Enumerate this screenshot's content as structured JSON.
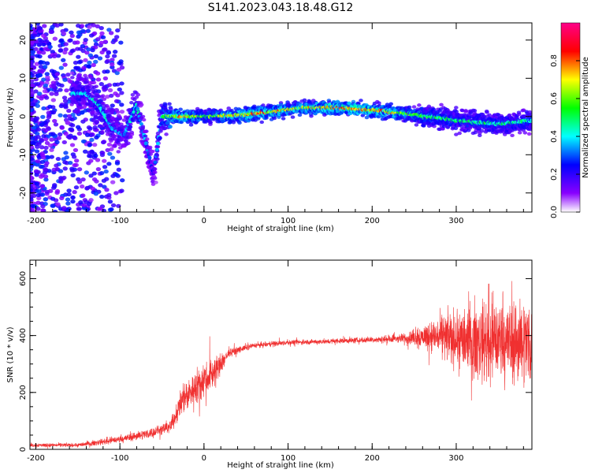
{
  "figure": {
    "title": "S141.2023.043.18.48.G12"
  },
  "chart_data": [
    {
      "type": "heatmap",
      "xlabel": "Height of straight line (km)",
      "ylabel": "Frequency (Hz)",
      "xlim": [
        -207,
        390
      ],
      "ylim": [
        -25,
        24.5
      ],
      "x_ticks": [
        -200,
        -100,
        0,
        100,
        200,
        300
      ],
      "y_ticks": [
        -20,
        -10,
        0,
        10,
        20
      ],
      "colorbar": {
        "label": "Normalized spectral amplitude",
        "range": [
          0,
          1
        ],
        "ticks": [
          0.0,
          0.2,
          0.4,
          0.6,
          0.8
        ],
        "colormap": "rainbow (purple-blue-cyan-green-yellow-red-magenta)",
        "stops": [
          "#ffffff",
          "#8800ff",
          "#0000ff",
          "#00ffff",
          "#00ff00",
          "#ffff00",
          "#ff0000",
          "#ff0088"
        ]
      },
      "ridge": [
        {
          "x": -140,
          "f": 6,
          "amp": 0.4
        },
        {
          "x": -125,
          "f": 3,
          "amp": 0.45
        },
        {
          "x": -110,
          "f": -3,
          "amp": 0.4
        },
        {
          "x": -95,
          "f": -5,
          "amp": 0.35
        },
        {
          "x": -80,
          "f": 3,
          "amp": 0.45
        },
        {
          "x": -70,
          "f": -6,
          "amp": 0.35
        },
        {
          "x": -60,
          "f": -15,
          "amp": 0.25
        },
        {
          "x": -50,
          "f": 0,
          "amp": 0.5
        },
        {
          "x": -30,
          "f": 0,
          "amp": 0.85
        },
        {
          "x": 0,
          "f": 0,
          "amp": 0.6
        },
        {
          "x": 50,
          "f": 0.5,
          "amp": 0.8
        },
        {
          "x": 90,
          "f": 1.5,
          "amp": 0.75
        },
        {
          "x": 115,
          "f": 2.3,
          "amp": 0.7
        },
        {
          "x": 160,
          "f": 2.3,
          "amp": 0.85
        },
        {
          "x": 210,
          "f": 1.5,
          "amp": 0.8
        },
        {
          "x": 250,
          "f": 0.5,
          "amp": 0.6
        },
        {
          "x": 300,
          "f": -1,
          "amp": 0.5
        },
        {
          "x": 350,
          "f": -2,
          "amp": 0.5
        },
        {
          "x": 390,
          "f": -1,
          "amp": 0.5
        }
      ]
    },
    {
      "type": "line",
      "xlabel": "Height of straight line (km)",
      "ylabel": "SNR (10 * v/v)",
      "xlim": [
        -207,
        390
      ],
      "ylim": [
        0,
        665
      ],
      "x_ticks": [
        -200,
        -100,
        0,
        100,
        200,
        300
      ],
      "y_ticks": [
        0,
        200,
        400,
        600
      ],
      "color": "#f03030",
      "profile": [
        {
          "x": -207,
          "y": 15,
          "noise": 8
        },
        {
          "x": -150,
          "y": 15,
          "noise": 8
        },
        {
          "x": -100,
          "y": 35,
          "noise": 15
        },
        {
          "x": -60,
          "y": 60,
          "noise": 20
        },
        {
          "x": -40,
          "y": 80,
          "noise": 25
        },
        {
          "x": -25,
          "y": 180,
          "noise": 60
        },
        {
          "x": -10,
          "y": 220,
          "noise": 70
        },
        {
          "x": 15,
          "y": 280,
          "noise": 60
        },
        {
          "x": 30,
          "y": 340,
          "noise": 15
        },
        {
          "x": 60,
          "y": 365,
          "noise": 10
        },
        {
          "x": 100,
          "y": 375,
          "noise": 10
        },
        {
          "x": 200,
          "y": 385,
          "noise": 12
        },
        {
          "x": 240,
          "y": 390,
          "noise": 20
        },
        {
          "x": 270,
          "y": 400,
          "noise": 60
        },
        {
          "x": 300,
          "y": 390,
          "noise": 120
        },
        {
          "x": 340,
          "y": 380,
          "noise": 170
        },
        {
          "x": 390,
          "y": 380,
          "noise": 170
        }
      ]
    }
  ]
}
